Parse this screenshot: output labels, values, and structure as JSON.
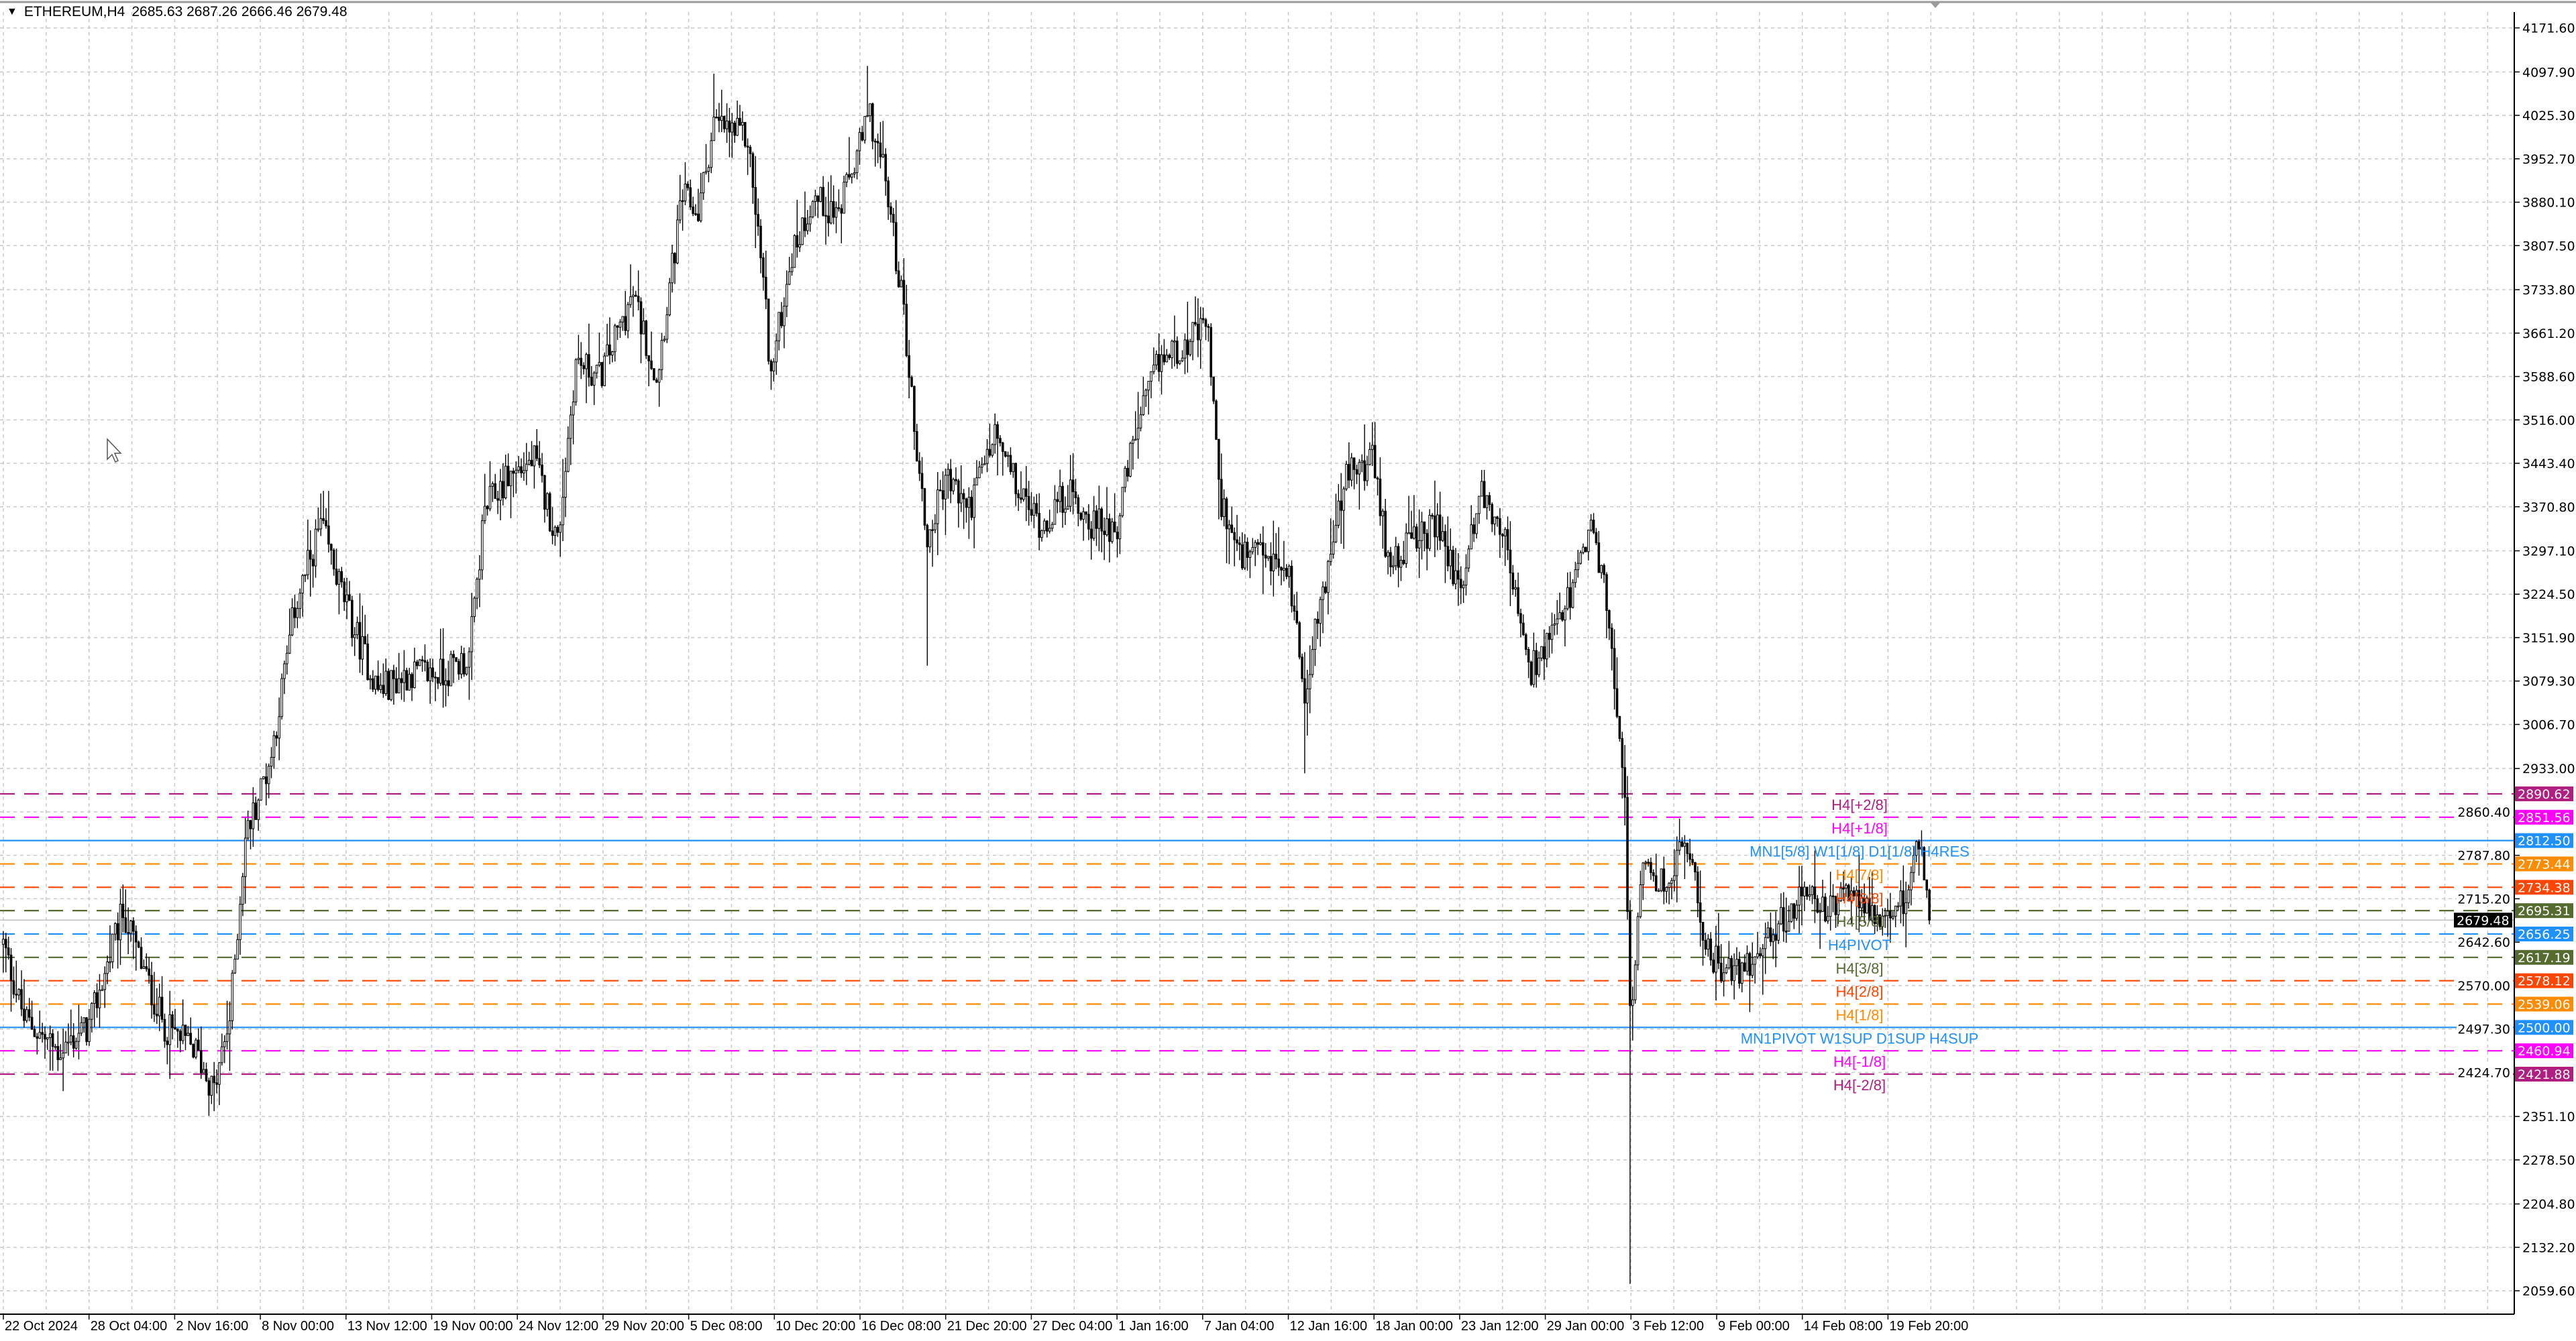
{
  "header": {
    "menu_icon": "triangle-down-icon",
    "symbol": "ETHEREUM,H4",
    "ohlc": "2685.63 2687.26 2666.46 2679.48"
  },
  "chart_data": {
    "type": "candlestick",
    "symbol": "ETHEREUM",
    "timeframe": "H4",
    "ylim": [
      2059.6,
      4171.6
    ],
    "grid": true,
    "y_ticks": [
      "4171.60",
      "4097.90",
      "4025.30",
      "3952.70",
      "3880.10",
      "3807.50",
      "3733.80",
      "3661.20",
      "3588.60",
      "3516.00",
      "3443.40",
      "3370.80",
      "3297.10",
      "3224.50",
      "3151.90",
      "3079.30",
      "3006.70",
      "2933.00",
      "2860.40",
      "2787.80",
      "2715.20",
      "2642.60",
      "2570.00",
      "2497.30",
      "2424.70",
      "2351.10",
      "2278.50",
      "2204.80",
      "2132.20",
      "2059.60"
    ],
    "x_ticks": [
      "22 Oct 2024",
      "28 Oct 04:00",
      "2 Nov 16:00",
      "8 Nov 00:00",
      "13 Nov 12:00",
      "19 Nov 00:00",
      "24 Nov 12:00",
      "29 Nov 20:00",
      "5 Dec 08:00",
      "10 Dec 20:00",
      "16 Dec 08:00",
      "21 Dec 20:00",
      "27 Dec 04:00",
      "1 Jan 16:00",
      "7 Jan 04:00",
      "12 Jan 16:00",
      "18 Jan 00:00",
      "23 Jan 12:00",
      "29 Jan 00:00",
      "3 Feb 12:00",
      "9 Feb 00:00",
      "14 Feb 08:00",
      "19 Feb 20:00"
    ],
    "start": "2024-10-22 00:00",
    "close_path": [
      [
        "2024-10-22 00:00",
        2639
      ],
      [
        "2024-10-23 08:00",
        2515
      ],
      [
        "2024-10-25 12:00",
        2460
      ],
      [
        "2024-10-27 12:00",
        2502
      ],
      [
        "2024-10-29 16:00",
        2694
      ],
      [
        "2024-10-31 08:00",
        2570
      ],
      [
        "2024-11-01 08:00",
        2502
      ],
      [
        "2024-11-03 08:00",
        2460
      ],
      [
        "2024-11-04 12:00",
        2392
      ],
      [
        "2024-11-05 12:00",
        2515
      ],
      [
        "2024-11-06 12:00",
        2818
      ],
      [
        "2024-11-08 04:00",
        2955
      ],
      [
        "2024-11-09 16:00",
        3202
      ],
      [
        "2024-11-11 08:00",
        3340
      ],
      [
        "2024-11-12 08:00",
        3257
      ],
      [
        "2024-11-13 08:00",
        3175
      ],
      [
        "2024-11-15 00:00",
        3065
      ],
      [
        "2024-11-17 00:00",
        3092
      ],
      [
        "2024-11-19 04:00",
        3092
      ],
      [
        "2024-11-20 20:00",
        3120
      ],
      [
        "2024-11-21 20:00",
        3367
      ],
      [
        "2024-11-23 08:00",
        3422
      ],
      [
        "2024-11-25 00:00",
        3449
      ],
      [
        "2024-11-26 12:00",
        3312
      ],
      [
        "2024-11-27 16:00",
        3614
      ],
      [
        "2024-11-29 04:00",
        3587
      ],
      [
        "2024-12-01 08:00",
        3724
      ],
      [
        "2024-12-02 20:00",
        3587
      ],
      [
        "2024-12-04 12:00",
        3889
      ],
      [
        "2024-12-05 12:00",
        3861
      ],
      [
        "2024-12-06 12:00",
        4012
      ],
      [
        "2024-12-08 16:00",
        3985
      ],
      [
        "2024-12-09 16:00",
        3751
      ],
      [
        "2024-12-10 04:00",
        3587
      ],
      [
        "2024-12-11 08:00",
        3779
      ],
      [
        "2024-12-12 20:00",
        3889
      ],
      [
        "2024-12-14 12:00",
        3861
      ],
      [
        "2024-12-15 12:00",
        3944
      ],
      [
        "2024-12-16 12:00",
        4026
      ],
      [
        "2024-12-17 12:00",
        3916
      ],
      [
        "2024-12-18 16:00",
        3697
      ],
      [
        "2024-12-19 08:00",
        3504
      ],
      [
        "2024-12-20 04:00",
        3312
      ],
      [
        "2024-12-21 08:00",
        3422
      ],
      [
        "2024-12-22 20:00",
        3367
      ],
      [
        "2024-12-24 12:00",
        3491
      ],
      [
        "2024-12-26 00:00",
        3395
      ],
      [
        "2024-12-27 12:00",
        3340
      ],
      [
        "2024-12-29 04:00",
        3395
      ],
      [
        "2024-12-30 20:00",
        3340
      ],
      [
        "2025-01-01 08:00",
        3340
      ],
      [
        "2025-01-02 08:00",
        3477
      ],
      [
        "2025-01-04 00:00",
        3614
      ],
      [
        "2025-01-05 12:00",
        3642
      ],
      [
        "2025-01-07 04:00",
        3669
      ],
      [
        "2025-01-07 20:00",
        3395
      ],
      [
        "2025-01-09 04:00",
        3285
      ],
      [
        "2025-01-10 20:00",
        3285
      ],
      [
        "2025-01-12 08:00",
        3257
      ],
      [
        "2025-01-13 08:00",
        3065
      ],
      [
        "2025-01-14 12:00",
        3230
      ],
      [
        "2025-01-16 00:00",
        3422
      ],
      [
        "2025-01-17 16:00",
        3449
      ],
      [
        "2025-01-18 16:00",
        3285
      ],
      [
        "2025-01-20 08:00",
        3312
      ],
      [
        "2025-01-21 20:00",
        3340
      ],
      [
        "2025-01-23 08:00",
        3230
      ],
      [
        "2025-01-24 12:00",
        3395
      ],
      [
        "2025-01-26 00:00",
        3340
      ],
      [
        "2025-01-27 16:00",
        3092
      ],
      [
        "2025-01-29 04:00",
        3147
      ],
      [
        "2025-01-30 20:00",
        3257
      ],
      [
        "2025-01-31 20:00",
        3340
      ],
      [
        "2025-02-01 20:00",
        3175
      ],
      [
        "2025-02-02 20:00",
        2900
      ],
      [
        "2025-02-03 04:00",
        2515
      ],
      [
        "2025-02-04 00:00",
        2763
      ],
      [
        "2025-02-05 12:00",
        2735
      ],
      [
        "2025-02-06 16:00",
        2818
      ],
      [
        "2025-02-08 04:00",
        2626
      ],
      [
        "2025-02-09 20:00",
        2584
      ],
      [
        "2025-02-11 08:00",
        2626
      ],
      [
        "2025-02-13 00:00",
        2680
      ],
      [
        "2025-02-14 12:00",
        2722
      ],
      [
        "2025-02-16 04:00",
        2694
      ],
      [
        "2025-02-17 16:00",
        2735
      ],
      [
        "2025-02-19 04:00",
        2653
      ],
      [
        "2025-02-20 20:00",
        2722
      ],
      [
        "2025-02-21 20:00",
        2818
      ],
      [
        "2025-02-22 08:00",
        2679.48
      ]
    ],
    "extremes": [
      [
        "2024-11-04 12:00",
        "low",
        2360
      ],
      [
        "2024-12-06 12:00",
        "high",
        4095
      ],
      [
        "2024-12-16 08:00",
        "high",
        4108
      ],
      [
        "2024-12-20 04:00",
        "low",
        3105
      ],
      [
        "2025-01-13 08:00",
        "low",
        2925
      ],
      [
        "2025-02-03 04:00",
        "low",
        2071
      ]
    ],
    "levels": [
      {
        "price": "2890.62",
        "label": "H4[+2/8]",
        "color": "#B01E82",
        "style": "dashed"
      },
      {
        "price": "2851.56",
        "label": "H4[+1/8]",
        "color": "#FF00FF",
        "style": "dashed"
      },
      {
        "price": "2812.50",
        "label": "MN1[5/8] W1[1/8] D1[1/8] H4RES",
        "color": "#1E90FF",
        "style": "solid"
      },
      {
        "price": "2773.44",
        "label": "H4[7/8]",
        "color": "#FF8C00",
        "style": "dashed"
      },
      {
        "price": "2734.38",
        "label": "H4[6/8]",
        "color": "#FF4500",
        "style": "dashed"
      },
      {
        "price": "2695.31",
        "label": "H4[5/8]",
        "color": "#556B2F",
        "style": "dashed"
      },
      {
        "price": "2656.25",
        "label": "H4PIVOT",
        "color": "#1E90FF",
        "style": "dashed"
      },
      {
        "price": "2617.19",
        "label": "H4[3/8]",
        "color": "#556B2F",
        "style": "dashed"
      },
      {
        "price": "2578.12",
        "label": "H4[2/8]",
        "color": "#FF4500",
        "style": "dashed"
      },
      {
        "price": "2539.06",
        "label": "H4[1/8]",
        "color": "#FF8C00",
        "style": "dashed"
      },
      {
        "price": "2500.00",
        "label": "MN1PIVOT W1SUP D1SUP H4SUP",
        "color": "#1E90FF",
        "style": "solid"
      },
      {
        "price": "2460.94",
        "label": "H4[-1/8]",
        "color": "#FF00FF",
        "style": "dashed"
      },
      {
        "price": "2421.88",
        "label": "H4[-2/8]",
        "color": "#B01E82",
        "style": "dashed"
      }
    ],
    "current_price": {
      "price": "2679.48",
      "color": "#000000"
    }
  },
  "cursor_icon": "mouse-pointer-icon",
  "shift_marker_icon": "triangle-down-icon"
}
